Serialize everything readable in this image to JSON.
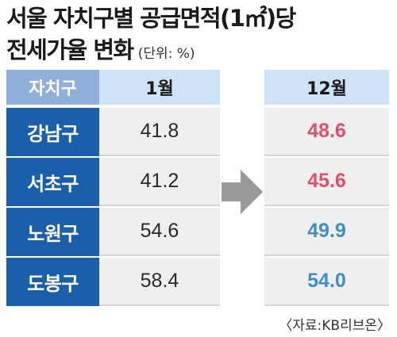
{
  "title": {
    "line1": "서울 자치구별 공급면적(1㎡)당",
    "line2": "전세가율 변화",
    "unit": "(단위: %)"
  },
  "table": {
    "header_name": "자치구",
    "header_left": "1월",
    "header_right": "12월"
  },
  "source": "〈자료:KB리브온〉",
  "colors": {
    "up": "#e0506a",
    "down": "#3f8fc6",
    "name_bg": "#1b5faa",
    "header_bg": "#cfe3f7",
    "cell_bg": "#efefef",
    "arrow": "#9a9a9a"
  },
  "chart_data": {
    "type": "table",
    "title": "서울 자치구별 공급면적(1㎡)당 전세가율 변화",
    "unit": "(단위: %)",
    "columns": [
      "자치구",
      "1월",
      "12월"
    ],
    "rows": [
      {
        "district": "강남구",
        "jan": "41.8",
        "dec": "48.6"
      },
      {
        "district": "서초구",
        "jan": "41.2",
        "dec": "45.6"
      },
      {
        "district": "노원구",
        "jan": "54.6",
        "dec": "49.9"
      },
      {
        "district": "도봉구",
        "jan": "58.4",
        "dec": "54.0"
      }
    ]
  }
}
